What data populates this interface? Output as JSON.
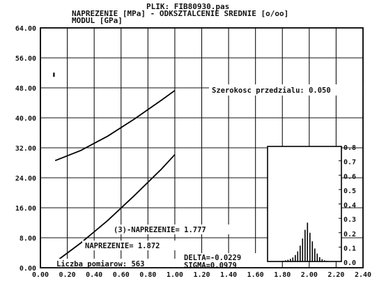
{
  "header": {
    "file_line": "PLIK: FIB80930.pas",
    "title_line1": "NAPREZENIE [MPa]  - ODKSZTALCENIE SREDNIE [o/oo]",
    "title_line2": "MODUL [GPa]"
  },
  "annotations": {
    "bin_width": "Szerokosc przedzialu:  0.050",
    "stress3": "(3)-NAPREZENIE= 1.777",
    "stress": "NAPREZENIE= 1.872",
    "count": "Liczba pomiarow: 563",
    "delta": "DELTA=-0.0229",
    "sigma": "SIGMA=0.0979"
  },
  "chart_data": [
    {
      "type": "line",
      "title": "NAPREZENIE [MPa]  - ODKSZTALCENIE SREDNIE [o/oo]",
      "xlim": [
        0,
        2.4
      ],
      "ylim": [
        0,
        64
      ],
      "grid": true,
      "x_ticks": [
        "0.00",
        "0.20",
        "0.40",
        "0.60",
        "0.80",
        "1.00",
        "1.20",
        "1.40",
        "1.60",
        "1.80",
        "2.00",
        "2.20",
        "2.40"
      ],
      "y_ticks": [
        "0.00",
        "8.00",
        "16.00",
        "24.00",
        "32.00",
        "40.00",
        "48.00",
        "56.00",
        "64.00"
      ],
      "series": [
        {
          "x": [
            0.11,
            0.3,
            0.5,
            0.7,
            0.9,
            1.0
          ],
          "y": [
            28.6,
            31.3,
            35.1,
            39.7,
            44.7,
            47.3
          ]
        },
        {
          "x": [
            0.11,
            0.3,
            0.5,
            0.7,
            0.9,
            1.0
          ],
          "y": [
            1.5,
            6.6,
            12.6,
            19.3,
            26.3,
            30.2
          ]
        }
      ],
      "points": [
        {
          "x": 0.1,
          "y": 51.5
        }
      ]
    },
    {
      "type": "bar",
      "y_ticks": [
        "0.0",
        "0.1",
        "0.2",
        "0.3",
        "0.4",
        "0.5",
        "0.6",
        "0.7",
        "0.8"
      ],
      "ylim": [
        0,
        0.8
      ],
      "values": [
        0.002,
        0.005,
        0.008,
        0.012,
        0.018,
        0.028,
        0.045,
        0.07,
        0.11,
        0.16,
        0.22,
        0.27,
        0.2,
        0.14,
        0.09,
        0.055,
        0.03,
        0.016,
        0.008,
        0.004,
        0.002
      ]
    }
  ]
}
